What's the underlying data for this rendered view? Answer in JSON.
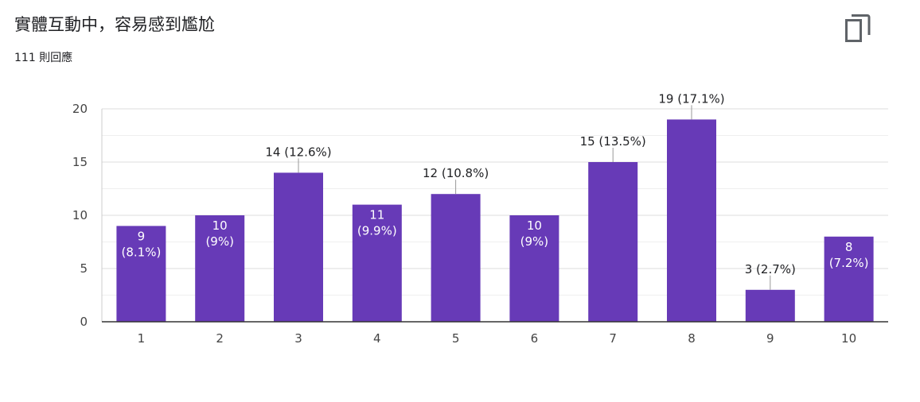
{
  "header": {
    "title": "實體互動中，容易感到尷尬",
    "responses": "111 則回應",
    "copy_icon": "copy-icon"
  },
  "colors": {
    "bar": "#673ab7",
    "grid": "#e6e6e6",
    "axis": "#333333",
    "text": "#202124",
    "label_inside": "#ffffff"
  },
  "chart_data": {
    "type": "bar",
    "categories": [
      "1",
      "2",
      "3",
      "4",
      "5",
      "6",
      "7",
      "8",
      "9",
      "10"
    ],
    "values": [
      9,
      10,
      14,
      11,
      12,
      10,
      15,
      19,
      3,
      8
    ],
    "percents": [
      "8.1%",
      "9%",
      "12.6%",
      "9.9%",
      "10.8%",
      "9%",
      "13.5%",
      "17.1%",
      "2.7%",
      "7.2%"
    ],
    "label_position": [
      "inside",
      "inside",
      "outside",
      "inside",
      "outside",
      "inside",
      "outside",
      "outside",
      "outside",
      "inside"
    ],
    "ylim": [
      0,
      20
    ],
    "yticks": [
      0,
      5,
      10,
      15,
      20
    ],
    "grid": true,
    "legend": "none",
    "title": "",
    "xlabel": "",
    "ylabel": ""
  }
}
